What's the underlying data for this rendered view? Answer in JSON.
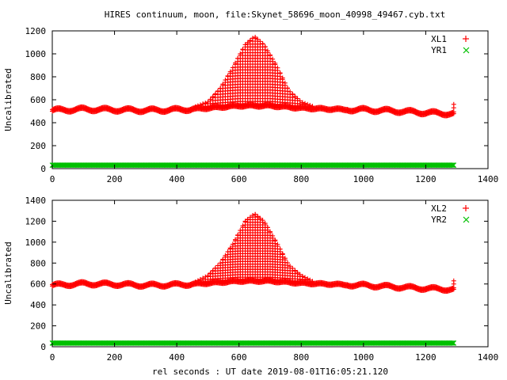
{
  "figure": {
    "title": "HIRES continuum, moon, file:Skynet_58696_moon_40998_49467.cyb.txt",
    "xlabel": "rel seconds : UT date 2019-08-01T16:05:21.120"
  },
  "chart_data": [
    {
      "type": "scatter",
      "ylabel": "Uncalibrated",
      "xlim": [
        0,
        1400
      ],
      "ylim": [
        0,
        1200
      ],
      "xticks": [
        "0",
        "200",
        "400",
        "600",
        "800",
        "1000",
        "1200",
        "1400"
      ],
      "yticks": [
        "0",
        "200",
        "400",
        "600",
        "800",
        "1000",
        "1200"
      ],
      "legend_position": "top-right",
      "series": [
        {
          "name": "XL1",
          "color": "#ff0000",
          "marker": "plus",
          "baseline": [
            [
              0,
              500
            ],
            [
              100,
              510
            ],
            [
              200,
              505
            ],
            [
              300,
              500
            ],
            [
              400,
              505
            ],
            [
              500,
              520
            ],
            [
              600,
              540
            ],
            [
              700,
              540
            ],
            [
              800,
              520
            ],
            [
              900,
              510
            ],
            [
              1000,
              505
            ],
            [
              1100,
              495
            ],
            [
              1200,
              480
            ],
            [
              1290,
              470
            ]
          ],
          "peaks": [
            [
              460,
              540
            ],
            [
              500,
              580
            ],
            [
              540,
              700
            ],
            [
              580,
              880
            ],
            [
              620,
              1080
            ],
            [
              650,
              1150
            ],
            [
              680,
              1080
            ],
            [
              720,
              900
            ],
            [
              760,
              680
            ],
            [
              800,
              580
            ],
            [
              840,
              540
            ]
          ]
        },
        {
          "name": "YR1",
          "color": "#00c000",
          "marker": "cross",
          "baseline": [
            [
              0,
              30
            ],
            [
              1290,
              30
            ]
          ]
        }
      ]
    },
    {
      "type": "scatter",
      "ylabel": "Uncalibrated",
      "xlim": [
        0,
        1400
      ],
      "ylim": [
        0,
        1400
      ],
      "xticks": [
        "0",
        "200",
        "400",
        "600",
        "800",
        "1000",
        "1200",
        "1400"
      ],
      "yticks": [
        "0",
        "200",
        "400",
        "600",
        "800",
        "1000",
        "1200",
        "1400"
      ],
      "legend_position": "top-right",
      "series": [
        {
          "name": "XL2",
          "color": "#ff0000",
          "marker": "plus",
          "baseline": [
            [
              0,
              580
            ],
            [
              100,
              595
            ],
            [
              200,
              590
            ],
            [
              300,
              580
            ],
            [
              400,
              585
            ],
            [
              500,
              600
            ],
            [
              600,
              620
            ],
            [
              700,
              620
            ],
            [
              800,
              600
            ],
            [
              900,
              590
            ],
            [
              1000,
              580
            ],
            [
              1100,
              565
            ],
            [
              1200,
              550
            ],
            [
              1290,
              540
            ]
          ],
          "peaks": [
            [
              460,
              620
            ],
            [
              500,
              680
            ],
            [
              540,
              800
            ],
            [
              580,
              980
            ],
            [
              620,
              1200
            ],
            [
              650,
              1270
            ],
            [
              680,
              1200
            ],
            [
              720,
              1000
            ],
            [
              760,
              780
            ],
            [
              800,
              680
            ],
            [
              840,
              620
            ]
          ]
        },
        {
          "name": "YR2",
          "color": "#00c000",
          "marker": "cross",
          "baseline": [
            [
              0,
              35
            ],
            [
              1290,
              35
            ]
          ]
        }
      ]
    }
  ]
}
